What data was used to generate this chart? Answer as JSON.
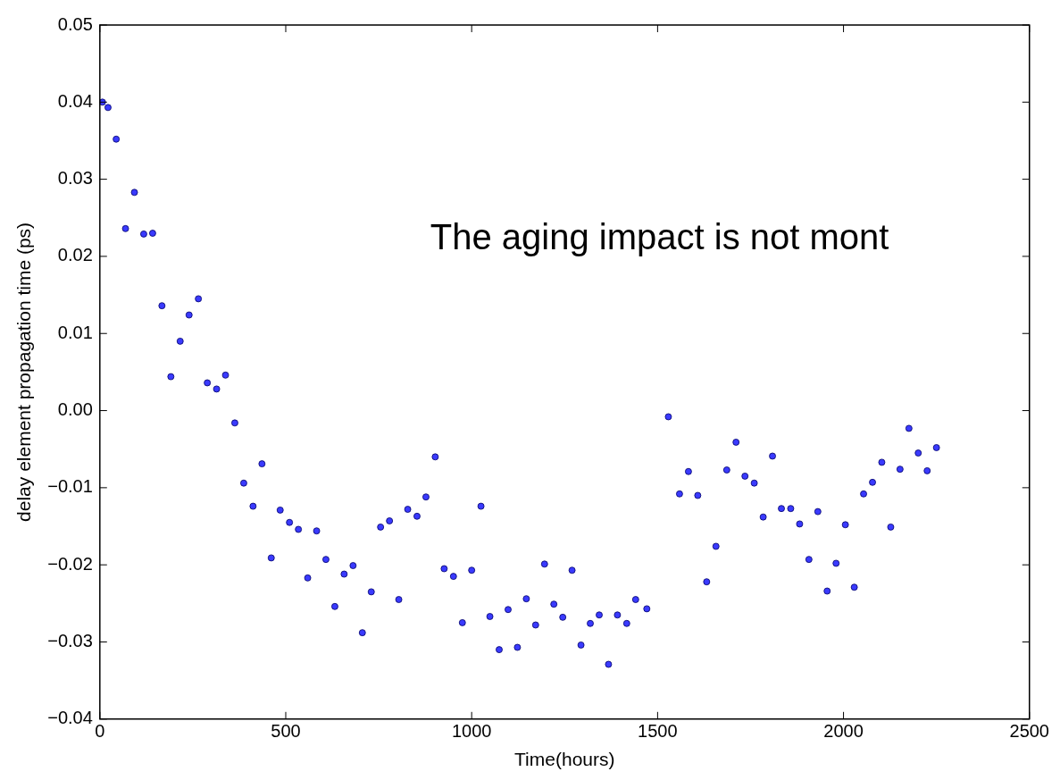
{
  "chart_data": {
    "type": "scatter",
    "xlabel": "Time(hours)",
    "ylabel": "delay element propagation time (ps)",
    "annotations": [
      "The aging impact is not mont"
    ],
    "xlim": [
      0,
      2500
    ],
    "xticks": [
      0,
      500,
      1000,
      1500,
      2000,
      2500
    ],
    "ylim": [
      -0.04,
      0.05
    ],
    "yticks": [
      {
        "value": -0.04,
        "label": "−0.04"
      },
      {
        "value": -0.03,
        "label": "−0.03"
      },
      {
        "value": -0.02,
        "label": "−0.02"
      },
      {
        "value": -0.01,
        "label": "−0.01"
      },
      {
        "value": 0,
        "label": "0.00"
      },
      {
        "value": 0.01,
        "label": "0.01"
      },
      {
        "value": 0.02,
        "label": "0.02"
      },
      {
        "value": 0.03,
        "label": "0.03"
      },
      {
        "value": 0.04,
        "label": "0.04"
      },
      {
        "value": 0.05,
        "label": "0.05"
      }
    ],
    "grid": false,
    "legend": false,
    "marker": "circle",
    "series": [
      {
        "color": "#3a3aff",
        "x": [
          7,
          22,
          44,
          69,
          93,
          118,
          142,
          167,
          191,
          216,
          240,
          265,
          289,
          314,
          338,
          363,
          387,
          412,
          436,
          461,
          485,
          510,
          534,
          559,
          583,
          608,
          632,
          657,
          681,
          706,
          730,
          755,
          779,
          804,
          828,
          853,
          877,
          902,
          926,
          951,
          975,
          1000,
          1025,
          1049,
          1074,
          1098,
          1123,
          1147,
          1172,
          1196,
          1221,
          1245,
          1270,
          1294,
          1319,
          1343,
          1368,
          1392,
          1417,
          1441,
          1471,
          1529,
          1559,
          1583,
          1608,
          1632,
          1657,
          1686,
          1711,
          1735,
          1760,
          1784,
          1809,
          1833,
          1858,
          1882,
          1907,
          1931,
          1956,
          1980,
          2005,
          2029,
          2054,
          2078,
          2103,
          2127,
          2152,
          2176,
          2201,
          2225,
          2250
        ],
        "values": [
          0.04,
          0.0393,
          0.0352,
          0.0236,
          0.0283,
          0.0229,
          0.023,
          0.0136,
          0.0044,
          0.009,
          0.0124,
          0.0145,
          0.0036,
          0.0028,
          0.0046,
          -0.0016,
          -0.0094,
          -0.0124,
          -0.0069,
          -0.0191,
          -0.0129,
          -0.0145,
          -0.0154,
          -0.0217,
          -0.0156,
          -0.0193,
          -0.0254,
          -0.0212,
          -0.0201,
          -0.0288,
          -0.0235,
          -0.0151,
          -0.0143,
          -0.0245,
          -0.0128,
          -0.0137,
          -0.0112,
          -0.006,
          -0.0205,
          -0.0215,
          -0.0275,
          -0.0207,
          -0.0124,
          -0.0267,
          -0.031,
          -0.0258,
          -0.0307,
          -0.0244,
          -0.0278,
          -0.0199,
          -0.0251,
          -0.0268,
          -0.0207,
          -0.0304,
          -0.0276,
          -0.0265,
          -0.0329,
          -0.0265,
          -0.0276,
          -0.0245,
          -0.0257,
          -0.0008,
          -0.0108,
          -0.0079,
          -0.011,
          -0.0222,
          -0.0176,
          -0.0077,
          -0.0041,
          -0.0085,
          -0.0094,
          -0.0138,
          -0.0059,
          -0.0127,
          -0.0127,
          -0.0147,
          -0.0193,
          -0.0131,
          -0.0234,
          -0.0198,
          -0.0148,
          -0.0229,
          -0.0108,
          -0.0093,
          -0.0067,
          -0.0151,
          -0.0076,
          -0.0023,
          -0.0055,
          -0.0078,
          -0.0048
        ]
      }
    ]
  }
}
